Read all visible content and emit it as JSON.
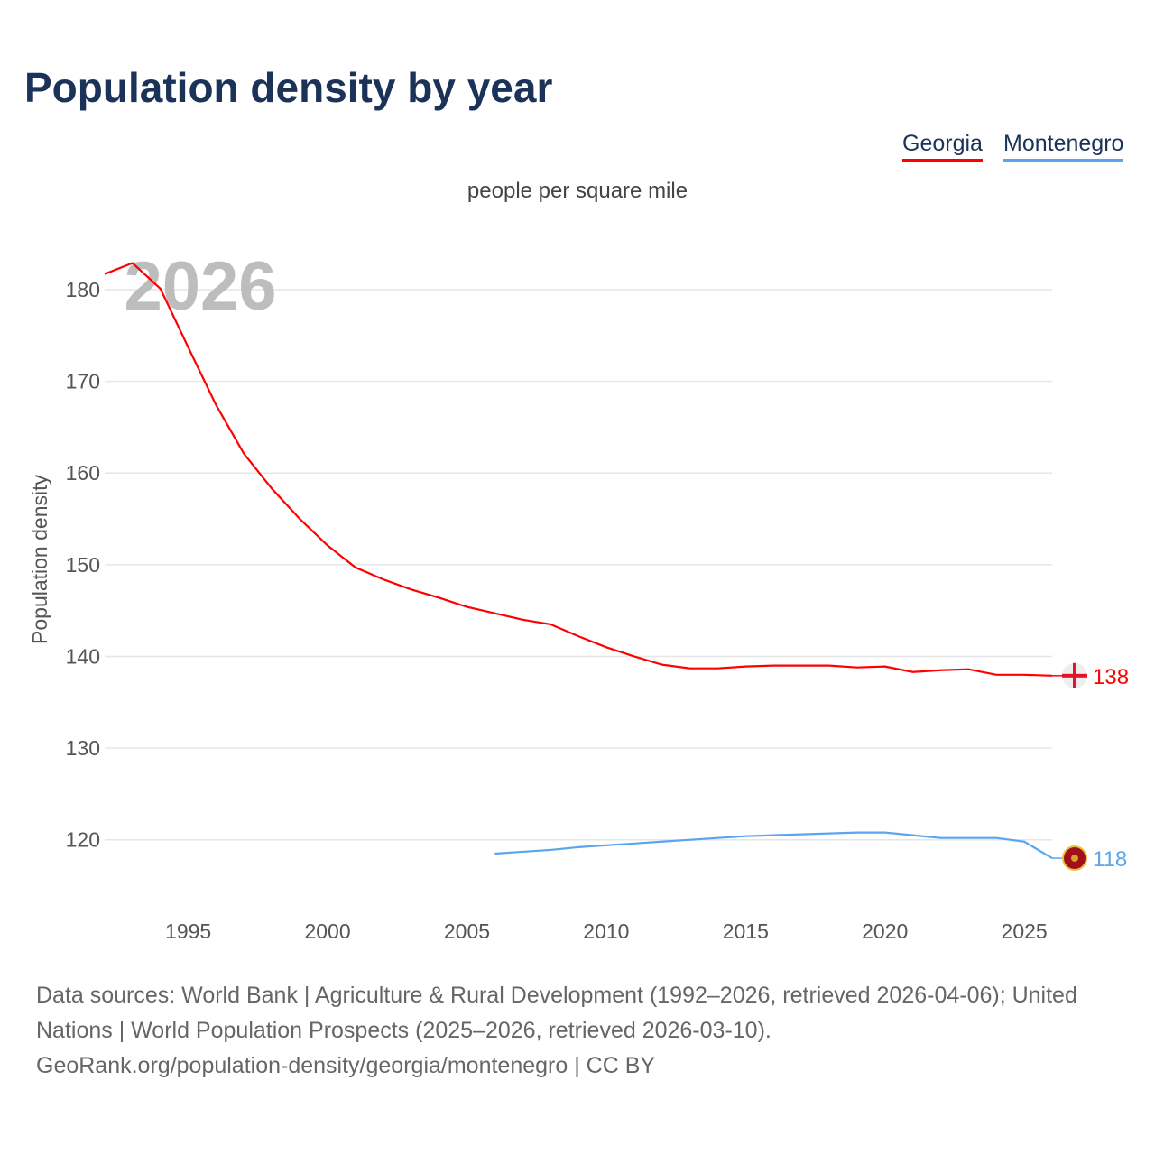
{
  "chart_data": {
    "type": "line",
    "title": "Population density by year",
    "subtitle": "people per square mile",
    "ylabel": "Population density",
    "xlabel": "",
    "year_watermark": "2026",
    "xlim": [
      1992,
      2026
    ],
    "ylim": [
      112.2,
      186
    ],
    "xticks": [
      1995,
      2000,
      2005,
      2010,
      2015,
      2020,
      2025
    ],
    "yticks": [
      120,
      130,
      140,
      150,
      160,
      170,
      180
    ],
    "grid": true,
    "legend_position": "top-right",
    "series": [
      {
        "name": "Georgia",
        "color": "#ff0000",
        "end_label": "138",
        "flag": "georgia-flag",
        "x": [
          1992,
          1993,
          1994,
          1995,
          1996,
          1997,
          1998,
          1999,
          2000,
          2001,
          2002,
          2003,
          2004,
          2005,
          2006,
          2007,
          2008,
          2009,
          2010,
          2011,
          2012,
          2013,
          2014,
          2015,
          2016,
          2017,
          2018,
          2019,
          2020,
          2021,
          2022,
          2023,
          2024,
          2025,
          2026
        ],
        "y": [
          181.7,
          182.9,
          180.1,
          173.7,
          167.4,
          162.1,
          158.3,
          155.0,
          152.1,
          149.7,
          148.4,
          147.3,
          146.4,
          145.4,
          144.7,
          144.0,
          143.5,
          142.2,
          141.0,
          140.0,
          139.1,
          138.7,
          138.7,
          138.9,
          139.0,
          139.0,
          139.0,
          138.8,
          138.9,
          138.3,
          138.5,
          138.6,
          138.0,
          138.0,
          137.9
        ]
      },
      {
        "name": "Montenegro",
        "color": "#5aa5ee",
        "end_label": "118",
        "flag": "montenegro-flag",
        "x": [
          2006,
          2007,
          2008,
          2009,
          2010,
          2011,
          2012,
          2013,
          2014,
          2015,
          2016,
          2017,
          2018,
          2019,
          2020,
          2021,
          2022,
          2023,
          2024,
          2025,
          2026
        ],
        "y": [
          118.5,
          118.7,
          118.9,
          119.2,
          119.4,
          119.6,
          119.8,
          120.0,
          120.2,
          120.4,
          120.5,
          120.6,
          120.7,
          120.8,
          120.8,
          120.5,
          120.2,
          120.2,
          120.2,
          119.8,
          118.0
        ]
      }
    ]
  },
  "footer": {
    "sources": "Data sources: World Bank | Agriculture & Rural Development (1992–2026, retrieved 2026-04-06); United Nations | World Population Prospects (2025–2026, retrieved 2026-03-10).",
    "link": "GeoRank.org/population-density/georgia/montenegro | CC BY"
  }
}
